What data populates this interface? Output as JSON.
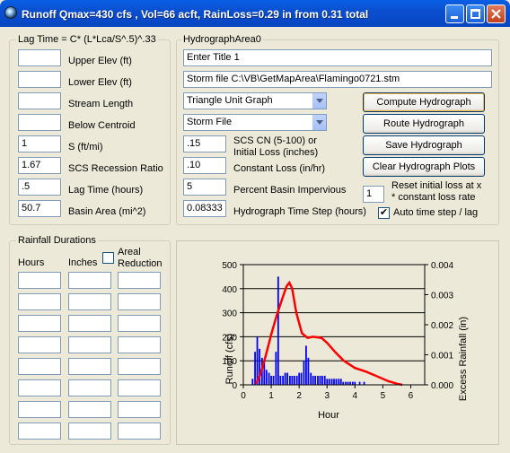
{
  "window": {
    "title": "Runoff Qmax=430 cfs , Vol=66 acft, RainLoss=0.29 in from 0.31 total"
  },
  "lag_group": {
    "legend": "Lag Time = C* (L*Lca/S^.5)^.33",
    "fields": [
      {
        "label": "Upper Elev (ft)",
        "value": ""
      },
      {
        "label": "Lower Elev (ft)",
        "value": ""
      },
      {
        "label": "Stream Length",
        "value": ""
      },
      {
        "label": "Below Centroid",
        "value": ""
      },
      {
        "label": "S (ft/mi)",
        "value": "1"
      },
      {
        "label": "SCS Recession Ratio",
        "value": "1.67"
      },
      {
        "label": "Lag Time (hours)",
        "value": ".5"
      },
      {
        "label": "Basin Area (mi^2)",
        "value": "50.7"
      }
    ]
  },
  "hydro_group": {
    "legend": "HydrographArea0",
    "title_input": "Enter Title 1",
    "storm_file_input": "Storm file C:\\VB\\GetMapArea\\Flamingo0721.stm",
    "unit_graph_select": "Triangle Unit Graph",
    "storm_select": "Storm File",
    "params": [
      {
        "value": ".15",
        "label1": "SCS CN (5-100) or",
        "label2": "Initial Loss (inches)"
      },
      {
        "value": ".10",
        "label1": "Constant Loss (in/hr)",
        "label2": ""
      },
      {
        "value": "5",
        "label1": "Percent Basin Impervious",
        "label2": ""
      },
      {
        "value": "0.08333",
        "label1": "Hydrograph Time Step (hours)",
        "label2": ""
      }
    ],
    "buttons": {
      "compute": "Compute Hydrograph",
      "route": "Route Hydrograph",
      "save": "Save Hydrograph",
      "clear": "Clear Hydrograph Plots"
    },
    "reset_value": "1",
    "reset_label1": "Reset initial loss at x",
    "reset_label2": "* constant loss rate",
    "auto_step_label": "Auto time step / lag",
    "auto_step_checked": true
  },
  "rainfall_group": {
    "legend": "Rainfall Durations",
    "col_hours": "Hours",
    "col_inches": "Inches",
    "col_areal1": "Areal",
    "col_areal2": "Reduction",
    "areal_checked": false,
    "row_count": 8
  },
  "chart_data": {
    "type": "line",
    "xlabel": "Hour",
    "ylabel": "Runoff (cfs)",
    "y2label": "Excess Rainfall (in)",
    "xlim": [
      0,
      6.5
    ],
    "ylim": [
      0,
      500
    ],
    "y2lim": [
      0,
      0.004
    ],
    "xticks": [
      "0",
      "1",
      "2",
      "3",
      "4",
      "5",
      "6"
    ],
    "yticks": [
      "0",
      "100",
      "200",
      "300",
      "400",
      "500"
    ],
    "y2ticks": [
      "0.000",
      "0.001",
      "0.002",
      "0.003",
      "0.004"
    ],
    "grid": "horizontal",
    "series": [
      {
        "type": "line",
        "axis": "left",
        "color": "#ff0000",
        "x": [
          0.45,
          0.6,
          0.8,
          1.0,
          1.2,
          1.4,
          1.55,
          1.65,
          1.75,
          1.9,
          2.1,
          2.3,
          2.5,
          2.8,
          3.0,
          3.3,
          3.6,
          4.0,
          4.4,
          4.8,
          5.2,
          5.5,
          5.7
        ],
        "y": [
          5,
          40,
          120,
          210,
          290,
          360,
          410,
          425,
          400,
          300,
          215,
          195,
          200,
          195,
          175,
          135,
          100,
          70,
          55,
          35,
          15,
          5,
          0
        ]
      },
      {
        "type": "bar",
        "axis": "right",
        "color": "#0000ff",
        "x": [
          0.33,
          0.42,
          0.5,
          0.58,
          0.67,
          0.75,
          0.83,
          0.92,
          1.0,
          1.08,
          1.17,
          1.25,
          1.33,
          1.42,
          1.5,
          1.58,
          1.67,
          1.75,
          1.83,
          1.92,
          2.0,
          2.08,
          2.17,
          2.25,
          2.33,
          2.42,
          2.5,
          2.58,
          2.67,
          2.75,
          2.83,
          2.92,
          3.0,
          3.08,
          3.17,
          3.25,
          3.33,
          3.42,
          3.5,
          3.58,
          3.67,
          3.75,
          3.83,
          3.92,
          4.0,
          4.17,
          4.33
        ],
        "y": [
          0.0002,
          0.0011,
          0.0016,
          0.0012,
          0.0009,
          0.0008,
          0.0005,
          0.0004,
          0.0003,
          0.0003,
          0.0011,
          0.0036,
          0.0003,
          0.0003,
          0.0004,
          0.0004,
          0.0003,
          0.0003,
          0.0003,
          0.0003,
          0.0004,
          0.0004,
          0.0008,
          0.0013,
          0.0009,
          0.0004,
          0.0003,
          0.0003,
          0.0003,
          0.0003,
          0.0003,
          0.0003,
          0.0002,
          0.0002,
          0.0002,
          0.0002,
          0.0002,
          0.0002,
          0.0002,
          0.0001,
          0.0001,
          0.0001,
          0.0001,
          0.0001,
          0.0001,
          0.0001,
          0.0001
        ]
      }
    ]
  }
}
